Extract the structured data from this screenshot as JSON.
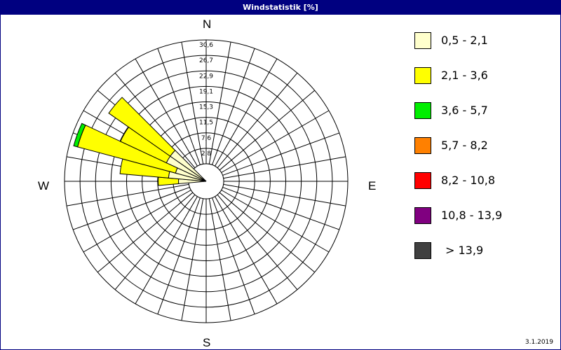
{
  "title": "Windstatistik [%]",
  "date": "3.1.2019",
  "directions": {
    "n": "N",
    "e": "E",
    "s": "S",
    "w": "W"
  },
  "legend": [
    {
      "label": "0,5 - 2,1",
      "color": "#ffffcc"
    },
    {
      "label": "2,1 - 3,6",
      "color": "#ffff00"
    },
    {
      "label": "3,6 - 5,7",
      "color": "#00ee00"
    },
    {
      "label": "5,7 - 8,2",
      "color": "#ff8000"
    },
    {
      "label": "8,2 - 10,8",
      "color": "#ff0000"
    },
    {
      "label": "10,8 - 13,9",
      "color": "#800080"
    },
    {
      "label": "> 13,9",
      "color": "#404040"
    }
  ],
  "chart_data": {
    "type": "wind-rose",
    "title": "Windstatistik [%]",
    "radial_unit": "%",
    "rings": [
      "2,8",
      "7,6",
      "11,5",
      "15,3",
      "19,1",
      "22,9",
      "26,7",
      "30,6"
    ],
    "ring_values": [
      2.8,
      7.6,
      11.5,
      15.3,
      19.1,
      22.9,
      26.7,
      30.6
    ],
    "sector_count": 36,
    "sectors": [
      {
        "direction_deg": 270,
        "segments": [
          {
            "class": "0,5 - 2,1",
            "value": 2.5
          },
          {
            "class": "2,1 - 3,6",
            "value": 5.0
          }
        ]
      },
      {
        "direction_deg": 280,
        "segments": [
          {
            "class": "0,5 - 2,1",
            "value": 5.0
          },
          {
            "class": "2,1 - 3,6",
            "value": 12.0
          }
        ]
      },
      {
        "direction_deg": 290,
        "segments": [
          {
            "class": "0,5 - 2,1",
            "value": 3.5
          },
          {
            "class": "2,1 - 3,6",
            "value": 25.0
          },
          {
            "class": "3,6 - 5,7",
            "value": 1.0
          }
        ]
      },
      {
        "direction_deg": 300,
        "segments": [
          {
            "class": "0,5 - 2,1",
            "value": 6.5
          },
          {
            "class": "2,1 - 3,6",
            "value": 12.5
          }
        ]
      },
      {
        "direction_deg": 310,
        "segments": [
          {
            "class": "0,5 - 2,1",
            "value": 6.5
          },
          {
            "class": "2,1 - 3,6",
            "value": 18.5
          }
        ]
      }
    ]
  }
}
